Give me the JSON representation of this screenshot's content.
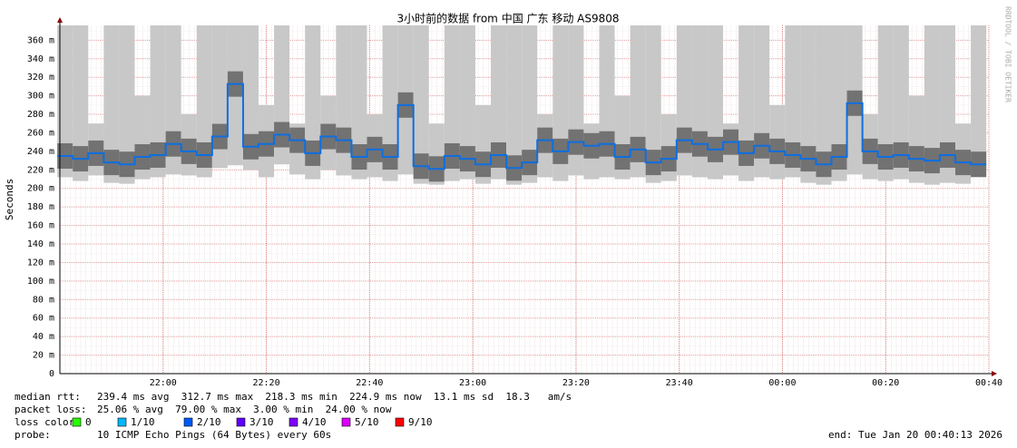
{
  "chart_data": {
    "type": "smokeping",
    "title": "3小时前的数据 from 中国 广东 移动 AS9808",
    "y_label": "Seconds",
    "credit": "RRDTOOL / TOBI OETIKER",
    "xlim": [
      "21:40",
      "00:40"
    ],
    "xticks": [
      "22:00",
      "22:20",
      "22:40",
      "23:00",
      "23:20",
      "23:40",
      "00:00",
      "00:20",
      "00:40"
    ],
    "ylim": [
      0,
      0.376
    ],
    "yticks": [
      0,
      {
        "value": 0.02,
        "label": "20 m"
      },
      {
        "value": 0.04,
        "label": "40 m"
      },
      {
        "value": 0.06,
        "label": "60 m"
      },
      {
        "value": 0.08,
        "label": "80 m"
      },
      {
        "value": 0.1,
        "label": "100 m"
      },
      {
        "value": 0.12,
        "label": "120 m"
      },
      {
        "value": 0.14,
        "label": "140 m"
      },
      {
        "value": 0.16,
        "label": "160 m"
      },
      {
        "value": 0.18,
        "label": "180 m"
      },
      {
        "value": 0.2,
        "label": "200 m"
      },
      {
        "value": 0.22,
        "label": "220 m"
      },
      {
        "value": 0.24,
        "label": "240 m"
      },
      {
        "value": 0.26,
        "label": "260 m"
      },
      {
        "value": 0.28,
        "label": "280 m"
      },
      {
        "value": 0.3,
        "label": "300 m"
      },
      {
        "value": 0.32,
        "label": "320 m"
      },
      {
        "value": 0.34,
        "label": "340 m"
      },
      {
        "value": 0.36,
        "label": "360 m"
      }
    ],
    "grid": true,
    "x": [
      "21:41",
      "21:44",
      "21:47",
      "21:50",
      "21:53",
      "21:56",
      "21:59",
      "22:02",
      "22:05",
      "22:08",
      "22:11",
      "22:14",
      "22:17",
      "22:20",
      "22:23",
      "22:26",
      "22:29",
      "22:32",
      "22:35",
      "22:38",
      "22:41",
      "22:44",
      "22:47",
      "22:50",
      "22:53",
      "22:56",
      "22:59",
      "23:02",
      "23:05",
      "23:08",
      "23:11",
      "23:14",
      "23:17",
      "23:20",
      "23:23",
      "23:26",
      "23:29",
      "23:32",
      "23:35",
      "23:38",
      "23:41",
      "23:44",
      "23:47",
      "23:50",
      "23:53",
      "23:56",
      "23:59",
      "00:02",
      "00:05",
      "00:08",
      "00:11",
      "00:14",
      "00:17",
      "00:20",
      "00:23",
      "00:26",
      "00:29",
      "00:32",
      "00:35",
      "00:38"
    ],
    "series": [
      {
        "name": "median rtt",
        "color": "#0f6ee0",
        "values": [
          0.235,
          0.232,
          0.238,
          0.228,
          0.226,
          0.234,
          0.236,
          0.248,
          0.24,
          0.236,
          0.256,
          0.3127,
          0.245,
          0.248,
          0.258,
          0.252,
          0.238,
          0.256,
          0.252,
          0.234,
          0.242,
          0.234,
          0.29,
          0.224,
          0.221,
          0.235,
          0.232,
          0.226,
          0.236,
          0.222,
          0.228,
          0.252,
          0.24,
          0.25,
          0.246,
          0.248,
          0.234,
          0.242,
          0.228,
          0.232,
          0.252,
          0.248,
          0.242,
          0.25,
          0.238,
          0.246,
          0.24,
          0.236,
          0.232,
          0.226,
          0.234,
          0.292,
          0.24,
          0.234,
          0.236,
          0.232,
          0.23,
          0.236,
          0.228,
          0.226
        ]
      },
      {
        "name": "smoke low",
        "color": "#555555",
        "values": [
          0.212,
          0.208,
          0.214,
          0.206,
          0.205,
          0.21,
          0.212,
          0.215,
          0.214,
          0.212,
          0.222,
          0.225,
          0.22,
          0.212,
          0.226,
          0.215,
          0.21,
          0.22,
          0.214,
          0.21,
          0.212,
          0.208,
          0.215,
          0.205,
          0.204,
          0.208,
          0.21,
          0.205,
          0.21,
          0.204,
          0.206,
          0.212,
          0.208,
          0.214,
          0.21,
          0.212,
          0.21,
          0.212,
          0.206,
          0.208,
          0.214,
          0.212,
          0.21,
          0.214,
          0.208,
          0.212,
          0.21,
          0.212,
          0.206,
          0.204,
          0.208,
          0.215,
          0.21,
          0.208,
          0.21,
          0.206,
          0.204,
          0.206,
          0.205,
          0.212
        ]
      },
      {
        "name": "smoke high",
        "color": "#c8c8c8",
        "values": [
          0.376,
          0.376,
          0.27,
          0.376,
          0.376,
          0.3,
          0.376,
          0.376,
          0.28,
          0.376,
          0.376,
          0.376,
          0.376,
          0.29,
          0.376,
          0.27,
          0.376,
          0.3,
          0.376,
          0.376,
          0.28,
          0.376,
          0.376,
          0.376,
          0.27,
          0.376,
          0.376,
          0.29,
          0.376,
          0.376,
          0.376,
          0.28,
          0.376,
          0.376,
          0.27,
          0.376,
          0.3,
          0.376,
          0.376,
          0.28,
          0.376,
          0.376,
          0.376,
          0.27,
          0.376,
          0.376,
          0.29,
          0.376,
          0.376,
          0.376,
          0.376,
          0.376,
          0.28,
          0.376,
          0.376,
          0.3,
          0.376,
          0.376,
          0.27,
          0.376
        ]
      }
    ],
    "stats": [
      {
        "label": "median rtt:",
        "text": "239.4 ms avg  312.7 ms max  218.3 ms min  224.9 ms now  13.1 ms sd  18.3   am/s"
      },
      {
        "label": "packet loss:",
        "text": "25.06 % avg  79.00 % max  3.00 % min  24.00 % now"
      }
    ],
    "loss_label": "loss color:",
    "loss_colors": [
      {
        "name": "0",
        "color": "#26ff00"
      },
      {
        "name": "1/10",
        "color": "#00b8ff"
      },
      {
        "name": "2/10",
        "color": "#0059ff"
      },
      {
        "name": "3/10",
        "color": "#5e00ff"
      },
      {
        "name": "4/10",
        "color": "#7e00ff"
      },
      {
        "name": "5/10",
        "color": "#dd00ff"
      },
      {
        "name": "9/10",
        "color": "#ff0000"
      }
    ],
    "probe_label": "probe:",
    "probe": "10 ICMP Echo Pings (64 Bytes) every 60s",
    "end": "end: Tue Jan 20 00:40:13 2026"
  }
}
